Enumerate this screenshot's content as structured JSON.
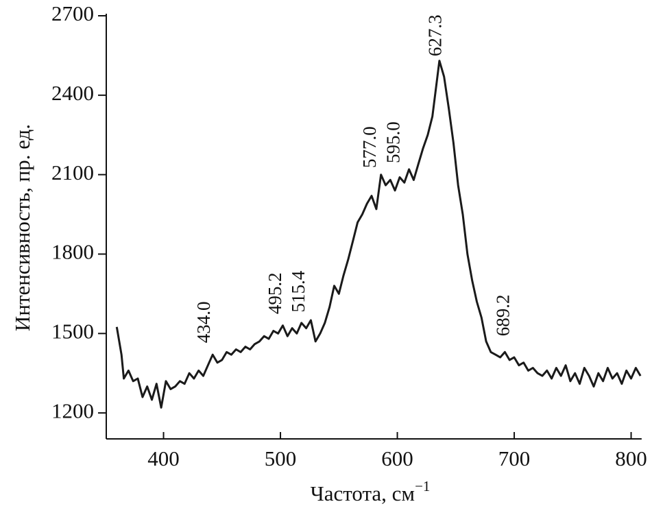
{
  "chart_data": {
    "type": "line",
    "xlabel": "Частота, см",
    "xlabel_sup": "−1",
    "ylabel": "Интенсивность, пр. ед.",
    "xlim": [
      351,
      809
    ],
    "ylim": [
      1102,
      2700
    ],
    "xticks": [
      400,
      500,
      600,
      700,
      800
    ],
    "yticks": [
      1200,
      1500,
      1800,
      2100,
      2400,
      2700
    ],
    "color": "#1a1a1a",
    "x": [
      360,
      364,
      366,
      370,
      374,
      378,
      382,
      386,
      390,
      394,
      398,
      402,
      406,
      410,
      414,
      418,
      422,
      426,
      430,
      434,
      438,
      442,
      446,
      450,
      454,
      458,
      462,
      466,
      470,
      474,
      478,
      482,
      486,
      490,
      494,
      498,
      502,
      506,
      510,
      514,
      518,
      522,
      526,
      530,
      534,
      538,
      542,
      546,
      550,
      554,
      558,
      562,
      566,
      570,
      574,
      578,
      582,
      586,
      590,
      594,
      598,
      602,
      606,
      610,
      614,
      618,
      622,
      626,
      630,
      634,
      636,
      640,
      644,
      648,
      652,
      656,
      660,
      664,
      668,
      672,
      676,
      680,
      684,
      688,
      692,
      696,
      700,
      704,
      708,
      712,
      716,
      720,
      724,
      728,
      732,
      736,
      740,
      744,
      748,
      752,
      756,
      760,
      764,
      768,
      772,
      776,
      780,
      784,
      788,
      792,
      796,
      800,
      804,
      808
    ],
    "values": [
      1525,
      1420,
      1330,
      1360,
      1320,
      1330,
      1260,
      1300,
      1250,
      1310,
      1220,
      1320,
      1290,
      1300,
      1320,
      1310,
      1350,
      1330,
      1360,
      1340,
      1380,
      1420,
      1390,
      1400,
      1430,
      1420,
      1440,
      1430,
      1450,
      1440,
      1460,
      1470,
      1490,
      1480,
      1510,
      1500,
      1530,
      1490,
      1520,
      1500,
      1540,
      1520,
      1550,
      1470,
      1500,
      1540,
      1600,
      1680,
      1650,
      1720,
      1780,
      1850,
      1920,
      1950,
      1990,
      2020,
      1970,
      2100,
      2060,
      2080,
      2040,
      2090,
      2070,
      2120,
      2080,
      2140,
      2200,
      2250,
      2320,
      2460,
      2530,
      2470,
      2350,
      2220,
      2060,
      1950,
      1800,
      1700,
      1620,
      1560,
      1470,
      1430,
      1420,
      1410,
      1430,
      1400,
      1410,
      1380,
      1390,
      1360,
      1370,
      1350,
      1340,
      1360,
      1330,
      1370,
      1340,
      1380,
      1320,
      1350,
      1310,
      1370,
      1340,
      1300,
      1350,
      1320,
      1370,
      1330,
      1350,
      1310,
      1360,
      1330,
      1370,
      1340
    ],
    "annotations": [
      {
        "text": "434.0",
        "x": 436,
        "y": 1464
      },
      {
        "text": "495.2",
        "x": 497,
        "y": 1573
      },
      {
        "text": "515.4",
        "x": 517,
        "y": 1580
      },
      {
        "text": "577.0",
        "x": 578,
        "y": 2125
      },
      {
        "text": "595.0",
        "x": 598,
        "y": 2143
      },
      {
        "text": "627.3",
        "x": 634,
        "y": 2547
      },
      {
        "text": "689.2",
        "x": 692,
        "y": 1490
      }
    ]
  }
}
